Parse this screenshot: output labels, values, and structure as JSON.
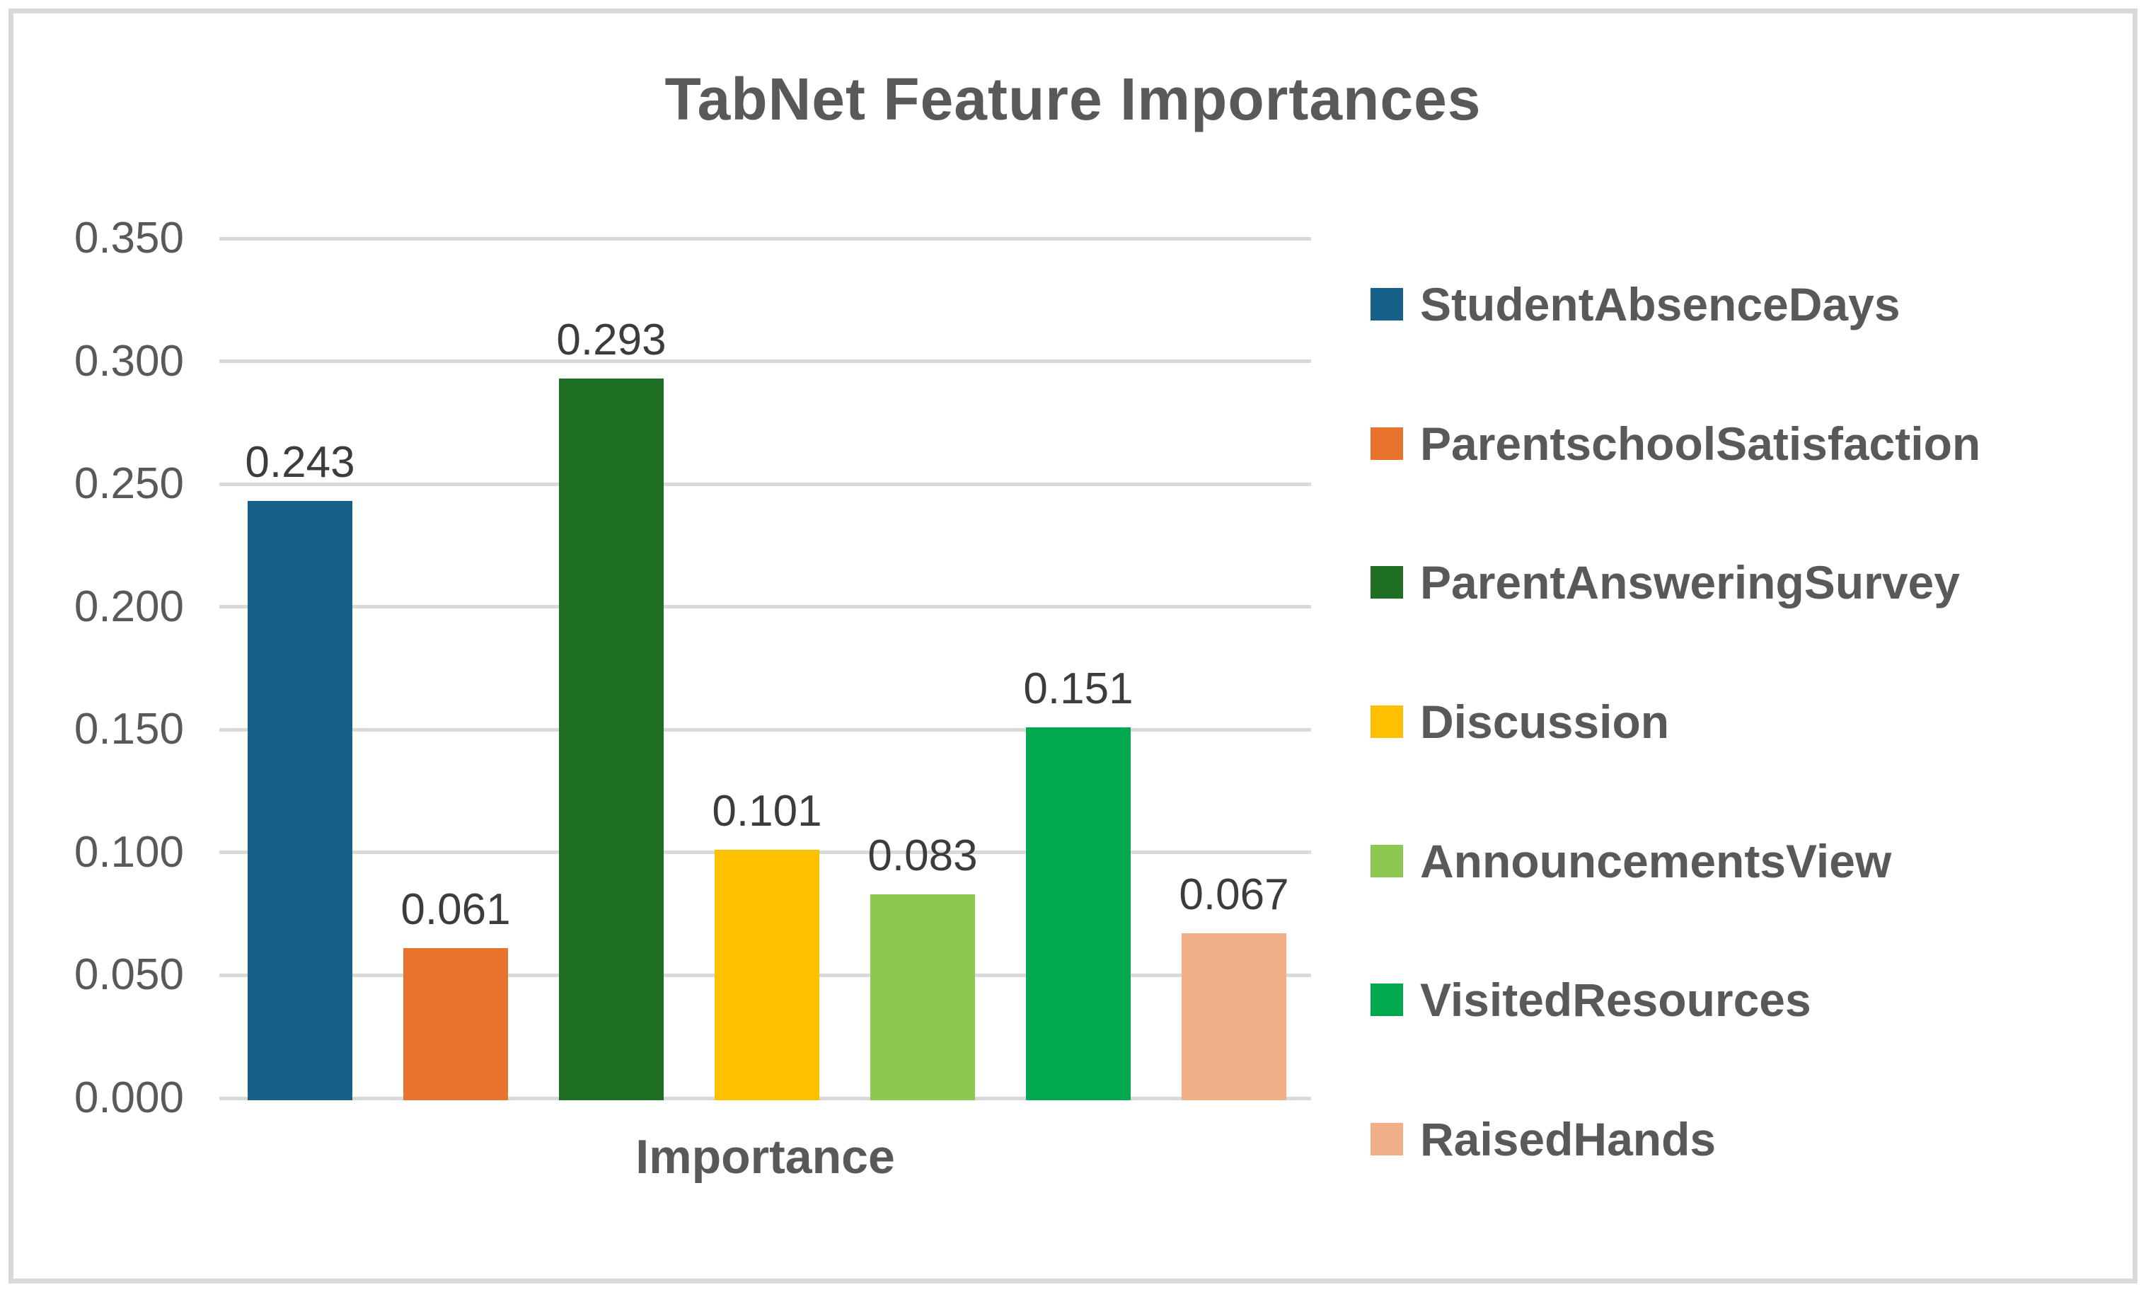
{
  "chart_data": {
    "type": "bar",
    "title": "TabNet Feature Importances",
    "xlabel": "Importance",
    "categories": [
      "StudentAbsenceDays",
      "ParentschoolSatisfaction",
      "ParentAnsweringSurvey",
      "Discussion",
      "AnnouncementsView",
      "VisitedResources",
      "RaisedHands"
    ],
    "values": [
      0.243,
      0.061,
      0.293,
      0.101,
      0.083,
      0.151,
      0.067
    ],
    "value_labels": [
      "0.243",
      "0.061",
      "0.293",
      "0.101",
      "0.083",
      "0.151",
      "0.067"
    ],
    "colors": [
      "#16618a",
      "#e8732d",
      "#1e6e24",
      "#ffc000",
      "#8dc853",
      "#00a94e",
      "#f1af88"
    ],
    "ylim": [
      0,
      0.35
    ],
    "ytick_step": 0.05,
    "yticks": [
      "0.000",
      "0.050",
      "0.100",
      "0.150",
      "0.200",
      "0.250",
      "0.300",
      "0.350"
    ],
    "grid": "horizontal-only",
    "legend_position": "right"
  },
  "style_colors": {
    "grid": "#d9d9d9",
    "frame_border": "#d9d9d9",
    "title_text": "#595959",
    "axis_text": "#595959",
    "value_text": "#3c3c3c",
    "legend_text": "#595959",
    "background": "#ffffff"
  }
}
